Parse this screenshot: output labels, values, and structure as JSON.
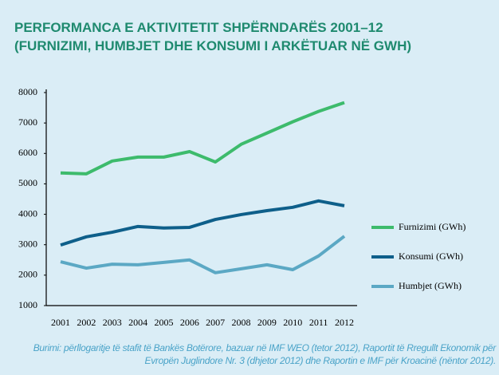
{
  "chart_data": {
    "type": "line",
    "title": [
      "PERFORMANCA E AKTIVITETIT SHPËRNDARËS 2001–12",
      "(FURNIZIMI, HUMBJET DHE KONSUMI I ARKËTUAR NË GWH)"
    ],
    "categories": [
      "2001",
      "2002",
      "2003",
      "2004",
      "2005",
      "2006",
      "2007",
      "2008",
      "2009",
      "2010",
      "2011",
      "2012"
    ],
    "series": [
      {
        "name": "Furnizimi (GWh)",
        "color": "#3dbb6c",
        "values": [
          5360,
          5330,
          5750,
          5880,
          5880,
          6060,
          5720,
          6300,
          6670,
          7040,
          7380,
          7670
        ]
      },
      {
        "name": "Konsumi (GWh)",
        "color": "#0e5f8a",
        "values": [
          2990,
          3260,
          3410,
          3600,
          3550,
          3570,
          3830,
          3990,
          4120,
          4230,
          4440,
          4280
        ]
      },
      {
        "name": "Humbjet (GWh)",
        "color": "#5ba8c4",
        "values": [
          2440,
          2230,
          2360,
          2340,
          2420,
          2500,
          2080,
          2210,
          2340,
          2180,
          2630,
          3280
        ]
      }
    ],
    "ylim": [
      1000,
      8000
    ],
    "yticks": [
      1000,
      2000,
      3000,
      4000,
      5000,
      6000,
      7000,
      8000
    ],
    "legend": "right",
    "source": "Burimi: përllogaritje të stafit të Bankës Botërore, bazuar në IMF WEO (tetor 2012), Raportit të Rregullt Ekonomik për Evropën Juglindore Nr. 3 (dhjetor 2012) dhe Raportin e IMF për Kroacinë (nëntor 2012)."
  }
}
